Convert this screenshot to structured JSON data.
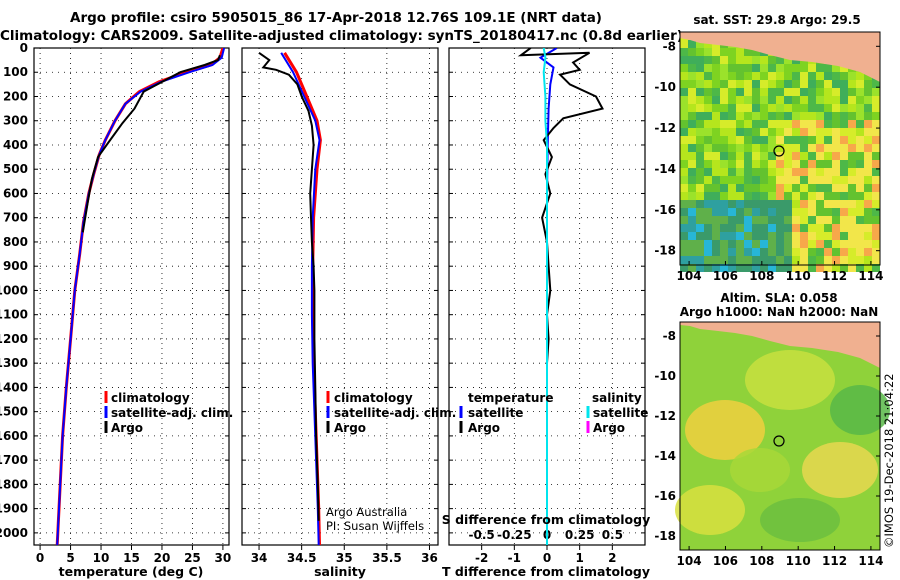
{
  "header": {
    "line1": "Argo profile: csiro 5905015_86 17-Apr-2018 12.76S 109.1E (NRT data)",
    "line2": "Climatology: CARS2009. Satellite-adjusted climatology: synTS_20180417.nc (0.8d earlier)"
  },
  "colors": {
    "climatology": "#ff0000",
    "satellite": "#0000ff",
    "argo": "#000000",
    "salinity_satellite": "#00e5ee",
    "salinity_argo": "#ff00ff",
    "land": "#f0b090"
  },
  "legend": {
    "climatology": "climatology",
    "satellite": "satellite-adj. clim.",
    "argo": "Argo",
    "temperature": "temperature",
    "salinity": "salinity",
    "satellite_short": "satellite"
  },
  "credits": {
    "line1": "Argo Australia",
    "line2": "PI: Susan Wijffels",
    "stamp": "©IMOS 19-Dec-2018 21:04:22"
  },
  "maps": {
    "sst_title": "sat. SST: 29.8 Argo: 29.5",
    "sla_title1": "Altim. SLA: 0.058",
    "sla_title2": "Argo h1000: NaN h2000: NaN",
    "lon_ticks": [
      "104",
      "106",
      "108",
      "110",
      "112",
      "114"
    ],
    "lat_ticks": [
      "-8",
      "-10",
      "-12",
      "-14",
      "-16",
      "-18"
    ],
    "float_position": {
      "lon": 109.1,
      "lat": -12.76
    }
  },
  "chart_data": [
    {
      "type": "line",
      "xlabel": "temperature (deg C)",
      "ylabel": "",
      "xlim": [
        -1,
        31
      ],
      "ylim": [
        2050,
        0
      ],
      "x_ticks": [
        0,
        5,
        10,
        15,
        20,
        25,
        30
      ],
      "y_ticks": [
        0,
        100,
        200,
        300,
        400,
        500,
        600,
        700,
        800,
        900,
        1000,
        1100,
        1200,
        1300,
        1400,
        1500,
        1600,
        1700,
        1800,
        1900,
        2000
      ],
      "series": [
        {
          "name": "climatology",
          "color": "#ff0000",
          "points": [
            [
              30.0,
              0
            ],
            [
              29.5,
              40
            ],
            [
              28.0,
              70
            ],
            [
              24,
              100
            ],
            [
              19.5,
              140
            ],
            [
              16.3,
              180
            ],
            [
              14.0,
              230
            ],
            [
              12.3,
              300
            ],
            [
              10.7,
              380
            ],
            [
              9.7,
              440
            ],
            [
              8.8,
              520
            ],
            [
              8,
              600
            ],
            [
              7.1,
              720
            ],
            [
              6.5,
              850
            ],
            [
              5.7,
              1000
            ],
            [
              5.0,
              1200
            ],
            [
              4.3,
              1400
            ],
            [
              3.7,
              1600
            ],
            [
              3.3,
              1800
            ],
            [
              2.9,
              2000
            ],
            [
              2.8,
              2050
            ]
          ]
        },
        {
          "name": "satellite-adj. clim.",
          "color": "#0000ff",
          "points": [
            [
              30.2,
              0
            ],
            [
              29.8,
              40
            ],
            [
              28.3,
              70
            ],
            [
              24.5,
              100
            ],
            [
              19.8,
              140
            ],
            [
              16.5,
              180
            ],
            [
              14.0,
              230
            ],
            [
              12.3,
              300
            ],
            [
              10.7,
              380
            ],
            [
              9.7,
              440
            ],
            [
              8.8,
              520
            ],
            [
              8,
              600
            ],
            [
              7.1,
              720
            ],
            [
              6.5,
              850
            ],
            [
              5.7,
              1000
            ],
            [
              5.0,
              1200
            ],
            [
              4.3,
              1400
            ],
            [
              3.7,
              1600
            ],
            [
              3.3,
              1800
            ],
            [
              2.9,
              2000
            ],
            [
              2.8,
              2050
            ]
          ]
        },
        {
          "name": "Argo",
          "color": "#000000",
          "points": [
            [
              29.5,
              30
            ],
            [
              29.2,
              50
            ],
            [
              27,
              70
            ],
            [
              23,
              100
            ],
            [
              18.5,
              160
            ],
            [
              17,
              180
            ],
            [
              15.5,
              250
            ],
            [
              13.5,
              310
            ],
            [
              11.2,
              390
            ],
            [
              9.5,
              450
            ],
            [
              8.5,
              540
            ],
            [
              7.8,
              640
            ],
            [
              7.0,
              760
            ]
          ]
        }
      ]
    },
    {
      "type": "line",
      "xlabel": "salinity",
      "ylabel": "",
      "xlim": [
        33.8,
        36.1
      ],
      "ylim": [
        2050,
        0
      ],
      "x_ticks": [
        "34",
        "34.5",
        "35",
        "35.5",
        "36"
      ],
      "series": [
        {
          "name": "climatology",
          "color": "#ff0000",
          "points": [
            [
              34.3,
              20
            ],
            [
              34.44,
              100
            ],
            [
              34.56,
              200
            ],
            [
              34.68,
              300
            ],
            [
              34.72,
              380
            ],
            [
              34.68,
              500
            ],
            [
              34.64,
              700
            ],
            [
              34.63,
              900
            ],
            [
              34.63,
              1100
            ],
            [
              34.64,
              1300
            ],
            [
              34.66,
              1500
            ],
            [
              34.68,
              1700
            ],
            [
              34.7,
              1900
            ],
            [
              34.71,
              2050
            ]
          ]
        },
        {
          "name": "satellite-adj. clim.",
          "color": "#0000ff",
          "points": [
            [
              34.26,
              20
            ],
            [
              34.4,
              100
            ],
            [
              34.53,
              200
            ],
            [
              34.66,
              300
            ],
            [
              34.71,
              380
            ],
            [
              34.66,
              500
            ],
            [
              34.63,
              700
            ],
            [
              34.62,
              900
            ],
            [
              34.62,
              1100
            ],
            [
              34.63,
              1300
            ],
            [
              34.65,
              1500
            ],
            [
              34.67,
              1700
            ],
            [
              34.69,
              1900
            ],
            [
              34.7,
              2050
            ]
          ]
        },
        {
          "name": "Argo",
          "color": "#000000",
          "points": [
            [
              34.0,
              20
            ],
            [
              34.12,
              50
            ],
            [
              34.05,
              80
            ],
            [
              34.2,
              90
            ],
            [
              34.35,
              110
            ],
            [
              34.45,
              150
            ],
            [
              34.5,
              200
            ],
            [
              34.58,
              260
            ],
            [
              34.62,
              320
            ],
            [
              34.64,
              400
            ],
            [
              34.62,
              500
            ],
            [
              34.6,
              600
            ],
            [
              34.61,
              700
            ],
            [
              34.62,
              800
            ],
            [
              34.64,
              900
            ],
            [
              34.65,
              1000
            ],
            [
              34.65,
              1200
            ],
            [
              34.66,
              1400
            ],
            [
              34.67,
              1600
            ],
            [
              34.69,
              1800
            ],
            [
              34.7,
              1950
            ]
          ]
        }
      ]
    },
    {
      "type": "line",
      "xlabel": "T difference from climatology",
      "title": "S difference from climatology",
      "xlim": [
        -3,
        3
      ],
      "ylim": [
        2050,
        0
      ],
      "x_ticks": [
        "-2",
        "-1",
        "0",
        "1",
        "2"
      ],
      "top_x_ticks": [
        "-0.5",
        "-0.25",
        "0",
        "0.25",
        "0.5"
      ],
      "series": [
        {
          "name": "temperature satellite",
          "color": "#0000ff",
          "points": [
            [
              0.3,
              0
            ],
            [
              -0.2,
              40
            ],
            [
              0.2,
              80
            ],
            [
              0.1,
              150
            ],
            [
              0.05,
              250
            ],
            [
              0.02,
              400
            ],
            [
              0,
              600
            ],
            [
              0,
              1000
            ],
            [
              0,
              2000
            ]
          ]
        },
        {
          "name": "temperature Argo",
          "color": "#000000",
          "points": [
            [
              -0.5,
              0
            ],
            [
              -0.8,
              30
            ],
            [
              1.3,
              20
            ],
            [
              0.8,
              60
            ],
            [
              1.0,
              90
            ],
            [
              0.4,
              110
            ],
            [
              0.7,
              150
            ],
            [
              1.5,
              200
            ],
            [
              1.7,
              250
            ],
            [
              0.5,
              290
            ],
            [
              0.2,
              330
            ],
            [
              -0.1,
              380
            ],
            [
              0.15,
              450
            ],
            [
              -0.05,
              520
            ],
            [
              0.1,
              600
            ],
            [
              -0.15,
              700
            ],
            [
              0.0,
              800
            ],
            [
              0.05,
              900
            ],
            [
              0.1,
              1000
            ],
            [
              0.0,
              1100
            ],
            [
              0.05,
              1200
            ],
            [
              0.0,
              1300
            ],
            [
              0.0,
              1600
            ],
            [
              0.0,
              1800
            ],
            [
              0.0,
              1960
            ]
          ]
        },
        {
          "name": "salinity satellite",
          "color": "#00e5ee",
          "points": [
            [
              -0.1,
              0
            ],
            [
              -0.05,
              40
            ],
            [
              -0.1,
              100
            ],
            [
              -0.05,
              200
            ],
            [
              -0.05,
              300
            ],
            [
              0.0,
              400
            ],
            [
              0.0,
              600
            ],
            [
              0.0,
              1000
            ],
            [
              0.0,
              2050
            ]
          ]
        }
      ]
    }
  ]
}
